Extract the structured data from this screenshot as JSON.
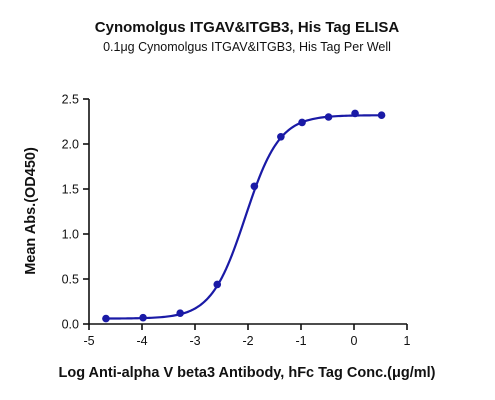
{
  "chart_data": {
    "type": "scatter",
    "title": "Cynomolgus ITGAV&ITGB3, His Tag ELISA",
    "subtitle": "0.1μg Cynomolgus ITGAV&ITGB3, His Tag Per Well",
    "xlabel": "Log Anti-alpha V beta3 Antibody, hFc Tag Conc.(μg/ml)",
    "ylabel": "Mean Abs.(OD450)",
    "xlim": [
      -5,
      1
    ],
    "ylim": [
      0,
      2.5
    ],
    "xticks": [
      "-5",
      "-4",
      "-3",
      "-2",
      "-1",
      "0",
      "1"
    ],
    "yticks": [
      "0.0",
      "0.5",
      "1.0",
      "1.5",
      "2.0",
      "2.5"
    ],
    "grid": false,
    "series": [
      {
        "color": "#1a1aa6",
        "fit": "four-parameter logistic",
        "points": [
          {
            "x": -4.68,
            "y": 0.06
          },
          {
            "x": -3.98,
            "y": 0.07
          },
          {
            "x": -3.28,
            "y": 0.12
          },
          {
            "x": -2.58,
            "y": 0.44
          },
          {
            "x": -1.88,
            "y": 1.53
          },
          {
            "x": -1.38,
            "y": 2.08
          },
          {
            "x": -0.98,
            "y": 2.24
          },
          {
            "x": -0.48,
            "y": 2.3
          },
          {
            "x": 0.02,
            "y": 2.34
          },
          {
            "x": 0.52,
            "y": 2.32
          }
        ],
        "curve": {
          "bottom": 0.06,
          "top": 2.32,
          "logEC50": -2.05,
          "hill": 1.35,
          "x_range": [
            -4.68,
            0.52
          ]
        }
      }
    ]
  }
}
